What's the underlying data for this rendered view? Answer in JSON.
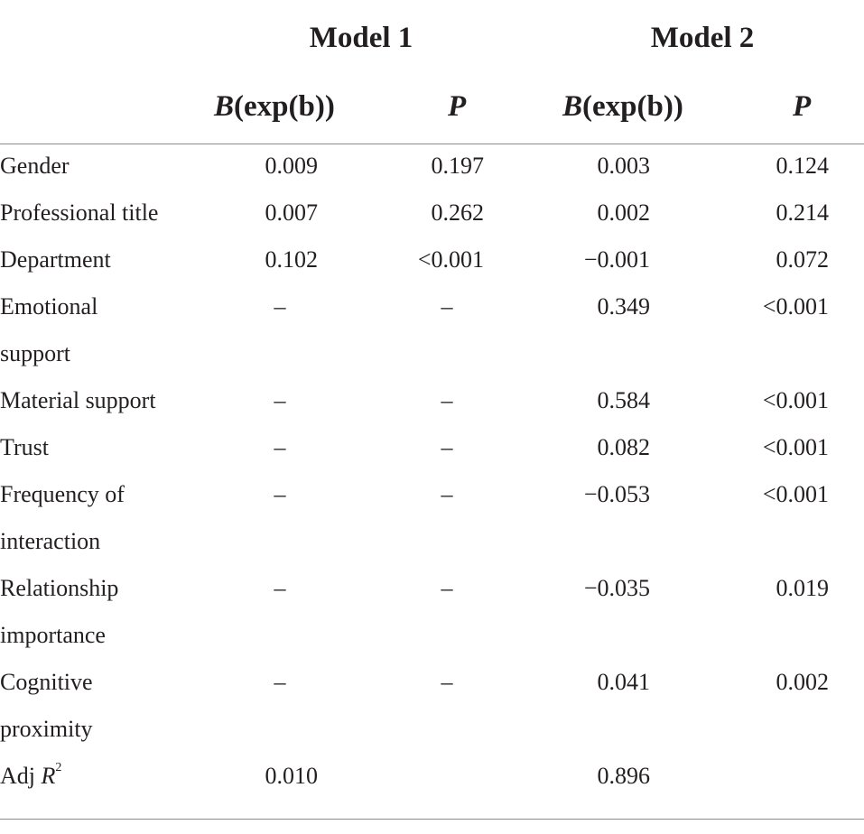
{
  "table": {
    "model_headers": [
      "Model 1",
      "Model 2"
    ],
    "col_headers": [
      {
        "italic": "B",
        "rest": "(exp(b))"
      },
      {
        "italic": "P",
        "rest": ""
      },
      {
        "italic": "B",
        "rest": "(exp(b))"
      },
      {
        "italic": "P",
        "rest": ""
      }
    ],
    "rows": [
      {
        "label": [
          "Gender"
        ],
        "values": [
          "0.009",
          "0.197",
          "0.003",
          "0.124"
        ]
      },
      {
        "label": [
          "Professional title"
        ],
        "values": [
          "0.007",
          "0.262",
          "0.002",
          "0.214"
        ]
      },
      {
        "label": [
          "Department"
        ],
        "values": [
          "0.102",
          "<0.001",
          "−0.001",
          "0.072"
        ]
      },
      {
        "label": [
          "Emotional",
          "support"
        ],
        "values": [
          "–",
          "–",
          "0.349",
          "<0.001"
        ]
      },
      {
        "label": [
          "Material support"
        ],
        "values": [
          "–",
          "–",
          "0.584",
          "<0.001"
        ]
      },
      {
        "label": [
          "Trust"
        ],
        "values": [
          "–",
          "–",
          "0.082",
          "<0.001"
        ]
      },
      {
        "label": [
          "Frequency of",
          "interaction"
        ],
        "values": [
          "–",
          "–",
          "−0.053",
          "<0.001"
        ]
      },
      {
        "label": [
          "Relationship",
          "importance"
        ],
        "values": [
          "–",
          "–",
          "−0.035",
          "0.019"
        ]
      },
      {
        "label": [
          "Cognitive",
          "proximity"
        ],
        "values": [
          "–",
          "–",
          "0.041",
          "0.002"
        ]
      }
    ],
    "adj_r2": {
      "label": "Adj ",
      "label_italic": "R",
      "label_sup": "2",
      "values": [
        "0.010",
        "",
        "0.896",
        ""
      ]
    }
  }
}
